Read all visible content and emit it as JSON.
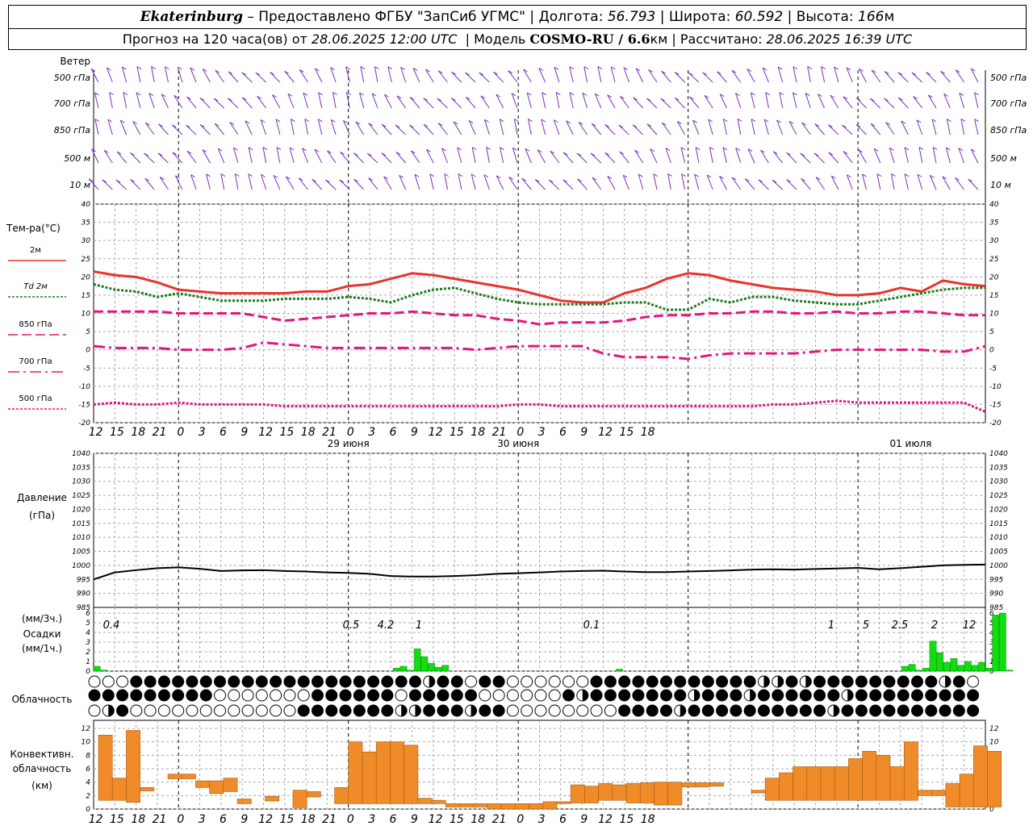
{
  "header": {
    "city": "Ekaterinburg",
    "provider": " – Предоставлено ФГБУ \"ЗапСиб УГМС\" | Долгота: ",
    "lon": "56.793",
    "lat_label": " | Широта: ",
    "lat": "60.592",
    "alt_label": " | Высота: ",
    "alt": "166",
    "alt_unit": "м",
    "forecast_prefix": "Прогноз на 120 часа(ов) от ",
    "forecast_time": "28.06.2025 12:00 UTC",
    "model_label": "  | Модель ",
    "model": "COSMO-RU / 6.6",
    "model_unit": "км",
    "calc_label": " | Рассчитано: ",
    "calc_time": "28.06.2025 16:39 UTC"
  },
  "wind_panel": {
    "title": "Ветер",
    "levels": [
      "500 гПа",
      "700 гПа",
      "850 гПа",
      "500 м",
      "10  м"
    ],
    "color": "#7b2fbf"
  },
  "time_axis": {
    "hour_labels": [
      "12",
      "15",
      "18",
      "21",
      "0",
      "3",
      "6",
      "9",
      "12",
      "15",
      "18",
      "21",
      "0",
      "3",
      "6",
      "9",
      "12",
      "15",
      "18",
      "21",
      "0",
      "3",
      "6",
      "9",
      "12",
      "15",
      "18"
    ],
    "date_labels": [
      "29 июня",
      "30 июня",
      "01 июля"
    ]
  },
  "temp_panel": {
    "title": "Тем-ра(°С)",
    "legend": [
      "2м",
      "Td  2м",
      "850 гПа",
      "700 гПа",
      "500 гПа"
    ],
    "y_ticks": [
      "40",
      "35",
      "30",
      "25",
      "20",
      "15",
      "10",
      "5",
      "0",
      "-5",
      "-10",
      "-15",
      "-20"
    ]
  },
  "pressure_panel": {
    "title1": "Давление",
    "title2": "(гПа)",
    "y_ticks": [
      "1040",
      "1035",
      "1030",
      "1025",
      "1020",
      "1015",
      "1010",
      "1005",
      "1000",
      "995",
      "990",
      "985"
    ]
  },
  "precip_panel": {
    "label1": "(мм/3ч.)",
    "label2": "Осадки",
    "label3": "(мм/1ч.)",
    "y_ticks": [
      "6",
      "5",
      "4",
      "3",
      "2",
      "1",
      "0"
    ],
    "totals": [
      "0.4",
      "0.5",
      "4.2",
      "1",
      "0.1",
      "1",
      "5",
      "2.5",
      "2",
      "12"
    ]
  },
  "cloud_panel": {
    "title": "Облачность"
  },
  "conv_panel": {
    "title1": "Конвективн.",
    "title2": "облачность",
    "title3": "(км)",
    "y_ticks": [
      "12",
      "10",
      "8",
      "6",
      "4",
      "2",
      "0"
    ]
  },
  "chart_data": [
    {
      "type": "line",
      "title": "Тем-ра(°С)",
      "x_hours_from_start": [
        0,
        3,
        6,
        9,
        12,
        15,
        18,
        21,
        24,
        27,
        30,
        33,
        36,
        39,
        42,
        45,
        48,
        51,
        54,
        57,
        60,
        63,
        66,
        69,
        72,
        75,
        78,
        81,
        84,
        87,
        90,
        93,
        96,
        99,
        102,
        105,
        108,
        111,
        114,
        117,
        120,
        123,
        126
      ],
      "ylim": [
        -20,
        40
      ],
      "series": [
        {
          "name": "2м",
          "color": "#e8342b",
          "style": "solid",
          "values": [
            21.5,
            20.5,
            20,
            18.5,
            16.5,
            16,
            15.5,
            15.5,
            15.5,
            15.5,
            16,
            16,
            17.5,
            18,
            19.5,
            21,
            20.5,
            19.5,
            18.5,
            17.5,
            16.5,
            15,
            13.5,
            13,
            13,
            15.5,
            17,
            19.5,
            21,
            20.5,
            19,
            18,
            17,
            16.5,
            16,
            15,
            15,
            15.5,
            17,
            16,
            19,
            18,
            17.5
          ]
        },
        {
          "name": "Td  2м",
          "color": "#1f7a1f",
          "style": "dotted",
          "values": [
            18,
            16.5,
            16,
            14.5,
            15.5,
            14.5,
            13.5,
            13.5,
            13.5,
            14,
            14,
            14,
            14.5,
            14,
            13,
            15,
            16.5,
            17,
            15.5,
            14,
            13,
            12.5,
            12.5,
            12.5,
            12.5,
            13,
            13,
            11,
            11,
            14,
            13,
            14.5,
            14.5,
            13.5,
            13,
            12.5,
            12.5,
            13.5,
            14.5,
            15.5,
            16.5,
            17,
            17
          ]
        },
        {
          "name": "850 гПа",
          "color": "#e0177f",
          "style": "dashed",
          "values": [
            10.5,
            10.5,
            10.5,
            10.5,
            10,
            10,
            10,
            10,
            9,
            8,
            8.5,
            9,
            9.5,
            10,
            10,
            10.5,
            10,
            9.5,
            9.5,
            8.5,
            8,
            7,
            7.5,
            7.5,
            7.5,
            8,
            9,
            9.5,
            9.5,
            10,
            10,
            10.5,
            10.5,
            10,
            10,
            10.5,
            10,
            10,
            10.5,
            10.5,
            10,
            9.5,
            9.5
          ]
        },
        {
          "name": "700 гПа",
          "color": "#e0177f",
          "style": "dashdot",
          "values": [
            1,
            0.5,
            0.5,
            0.5,
            0,
            0,
            0,
            0.5,
            2,
            1.5,
            1,
            0.5,
            0.5,
            0.5,
            0.5,
            0.5,
            0.5,
            0.5,
            0,
            0.5,
            1,
            1,
            1,
            1,
            -1,
            -2,
            -2,
            -2,
            -2.5,
            -1.5,
            -1,
            -1,
            -1,
            -1,
            -0.5,
            0,
            0,
            0,
            0,
            0,
            -0.5,
            -0.5,
            1
          ]
        },
        {
          "name": "500 гПа",
          "color": "#e0177f",
          "style": "dotted",
          "values": [
            -15,
            -14.5,
            -15,
            -15,
            -14.5,
            -15,
            -15,
            -15,
            -15,
            -15.5,
            -15.5,
            -15.5,
            -15.5,
            -15.5,
            -15.5,
            -15.5,
            -15.5,
            -15.5,
            -15.5,
            -15.5,
            -15,
            -15,
            -15.5,
            -15.5,
            -15.5,
            -15.5,
            -15.5,
            -15.5,
            -15.5,
            -15.5,
            -15.5,
            -15.5,
            -15,
            -15,
            -14.5,
            -14,
            -14.5,
            -14.5,
            -14.5,
            -14.5,
            -14.5,
            -14.5,
            -17
          ]
        }
      ]
    },
    {
      "type": "line",
      "title": "Давление",
      "ylabel": "(гПа)",
      "ylim": [
        985,
        1040
      ],
      "x_hours_from_start": [
        0,
        3,
        6,
        9,
        12,
        15,
        18,
        21,
        24,
        27,
        30,
        33,
        36,
        39,
        42,
        45,
        48,
        51,
        54,
        57,
        60,
        63,
        66,
        69,
        72,
        75,
        78,
        81,
        84,
        87,
        90,
        93,
        96,
        99,
        102,
        105,
        108,
        111,
        114,
        117,
        120,
        123,
        126
      ],
      "series": [
        {
          "name": "",
          "color": "#000000",
          "values": [
            995,
            997.5,
            998.3,
            999,
            999.3,
            998.8,
            998,
            998.2,
            998.3,
            998,
            997.8,
            997.5,
            997.3,
            997,
            996.2,
            996,
            996,
            996.2,
            996.5,
            997,
            997.2,
            997.5,
            997.8,
            998,
            998.1,
            997.8,
            997.6,
            997.6,
            997.8,
            998,
            998.2,
            998.5,
            998.6,
            998.5,
            998.7,
            998.9,
            999.1,
            998.6,
            999,
            999.5,
            1000,
            1000.2,
            1000.3
          ]
        }
      ]
    },
    {
      "type": "bar",
      "title": "Осадки",
      "ylabel": "(мм/1ч.)",
      "ylim": [
        0,
        6
      ],
      "x_hours_from_start": [
        0,
        1,
        2,
        3,
        4,
        5,
        6,
        7,
        8,
        9,
        10,
        11,
        12,
        13,
        14,
        15,
        16,
        17,
        18,
        19,
        20,
        21,
        22,
        23,
        24,
        25,
        26,
        27,
        28,
        29,
        30,
        31,
        32,
        33,
        34,
        35,
        36,
        37,
        38,
        39,
        40,
        41,
        42,
        43,
        44,
        45,
        46,
        47,
        48,
        49,
        50,
        51,
        52,
        53,
        54,
        55,
        56,
        57,
        58,
        59,
        60,
        61,
        62,
        63,
        64,
        65,
        66,
        67,
        68,
        69,
        70,
        71,
        72,
        73,
        74,
        75,
        76,
        77,
        78,
        79,
        80,
        81,
        82,
        83,
        84,
        85,
        86,
        87,
        88,
        89,
        90,
        91,
        92,
        93,
        94,
        95,
        96,
        97,
        98,
        99,
        100,
        101,
        102,
        103,
        104,
        105,
        106,
        107,
        108,
        109,
        110,
        111,
        112,
        113,
        114,
        115,
        116,
        117,
        118,
        119,
        120,
        121,
        122,
        123,
        124,
        125,
        126,
        127
      ],
      "values": [
        0.5,
        0.1,
        0,
        0,
        0,
        0,
        0,
        0,
        0,
        0,
        0,
        0,
        0,
        0,
        0,
        0,
        0,
        0,
        0,
        0,
        0,
        0,
        0,
        0,
        0,
        0,
        0,
        0,
        0,
        0,
        0,
        0,
        0,
        0,
        0,
        0,
        0,
        0,
        0,
        0,
        0,
        0,
        0,
        0.3,
        0.5,
        0.1,
        2.3,
        1.5,
        0.8,
        0.4,
        0.6,
        0,
        0,
        0,
        0,
        0,
        0,
        0,
        0,
        0,
        0,
        0,
        0,
        0,
        0,
        0,
        0,
        0,
        0,
        0,
        0,
        0,
        0,
        0,
        0,
        0.2,
        0,
        0,
        0,
        0,
        0,
        0,
        0,
        0,
        0,
        0,
        0,
        0,
        0,
        0,
        0,
        0,
        0,
        0,
        0,
        0,
        0,
        0,
        0,
        0,
        0,
        0,
        0,
        0,
        0,
        0,
        0,
        0,
        0,
        0,
        0,
        0,
        0,
        0,
        0,
        0,
        0.5,
        0.7,
        0.1,
        0.3,
        3.1,
        1.9,
        0.9,
        1.3,
        0.6,
        1.0,
        0.6,
        0.9,
        0.3,
        5.8,
        6.0,
        0.1
      ]
    },
    {
      "type": "bar",
      "title": "Конвективн. облачность",
      "ylabel": "(км)",
      "ylim": [
        0,
        13
      ],
      "bars": [
        [
          0,
          1.3,
          11
        ],
        [
          1,
          1.3,
          4.6
        ],
        [
          2,
          1,
          11.7
        ],
        [
          3,
          2.7,
          3.2
        ],
        [
          5,
          4.5,
          5.2
        ],
        [
          6,
          4.5,
          5.2
        ],
        [
          7,
          3.2,
          4.2
        ],
        [
          8,
          2.3,
          4.2
        ],
        [
          9,
          2.6,
          4.6
        ],
        [
          10,
          0.8,
          1.5
        ],
        [
          12,
          1.2,
          1.9
        ],
        [
          14,
          0.2,
          2.8
        ],
        [
          15,
          1.8,
          2.6
        ],
        [
          17,
          0.8,
          3.2
        ],
        [
          18,
          0.8,
          10
        ],
        [
          19,
          0.8,
          8.5
        ],
        [
          20,
          0.8,
          10
        ],
        [
          21,
          0.8,
          10
        ],
        [
          22,
          0.8,
          9.5
        ],
        [
          23,
          0.8,
          1.6
        ],
        [
          24,
          0.8,
          1.3
        ],
        [
          25,
          0.3,
          0.8
        ],
        [
          26,
          0.3,
          0.8
        ],
        [
          27,
          0.3,
          0.8
        ],
        [
          28,
          0,
          0.8
        ],
        [
          29,
          0,
          0.8
        ],
        [
          30,
          0,
          0.8
        ],
        [
          31,
          0,
          0.8
        ],
        [
          32,
          0,
          1.1
        ],
        [
          33,
          0.8,
          1.1
        ],
        [
          34,
          0.9,
          3.6
        ],
        [
          35,
          0.9,
          3.4
        ],
        [
          36,
          1.3,
          3.8
        ],
        [
          37,
          1.3,
          3.6
        ],
        [
          38,
          0.9,
          3.8
        ],
        [
          39,
          0.9,
          3.9
        ],
        [
          40,
          0.6,
          4
        ],
        [
          41,
          0.6,
          4
        ],
        [
          42,
          3.3,
          3.9
        ],
        [
          43,
          3.3,
          3.9
        ],
        [
          44,
          3.4,
          3.9
        ],
        [
          47,
          2.4,
          2.8
        ],
        [
          48,
          1.3,
          4.6
        ],
        [
          49,
          1.3,
          5.4
        ],
        [
          50,
          1.3,
          6.3
        ],
        [
          51,
          1.3,
          6.3
        ],
        [
          52,
          1.3,
          6.3
        ],
        [
          53,
          1.3,
          6.3
        ],
        [
          54,
          1.3,
          7.5
        ],
        [
          55,
          1.3,
          8.6
        ],
        [
          56,
          1.3,
          8
        ],
        [
          57,
          1.3,
          6.3
        ],
        [
          58,
          1.3,
          10
        ],
        [
          59,
          2,
          2.8
        ],
        [
          60,
          2,
          2.8
        ],
        [
          61,
          0.3,
          3.8
        ],
        [
          62,
          0.3,
          5.2
        ],
        [
          63,
          0.3,
          9.4
        ],
        [
          64,
          0.3,
          8.6
        ]
      ]
    }
  ]
}
